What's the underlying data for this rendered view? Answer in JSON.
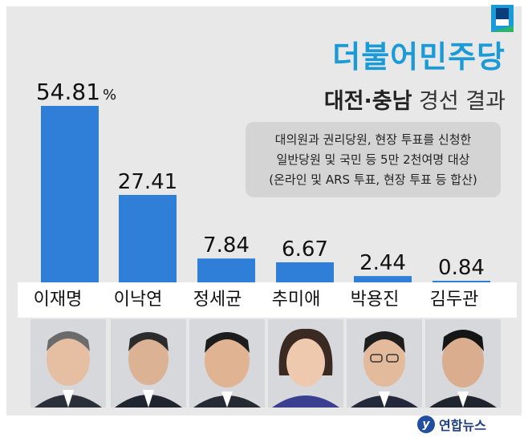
{
  "header": {
    "party": "더불어민주당",
    "region": "대전·충남",
    "result_label": "경선 결과"
  },
  "note": {
    "line1": "대의원과 권리당원, 현장 투표를 신청한",
    "line2": "일반당원 및 국민 등 5만 2천여명 대상",
    "line3": "(온라인 및 ARS 투표, 현장 투표 등 합산)"
  },
  "chart_data": {
    "type": "bar",
    "categories": [
      "이재명",
      "이낙연",
      "정세균",
      "추미애",
      "박용진",
      "김두관"
    ],
    "values": [
      54.81,
      27.41,
      7.84,
      6.67,
      2.44,
      0.84
    ],
    "value_labels": [
      "54.81",
      "27.41",
      "7.84",
      "6.67",
      "2.44",
      "0.84"
    ],
    "unit": "%",
    "title": "",
    "xlabel": "",
    "ylabel": "",
    "ylim": [
      0,
      54.81
    ],
    "bar_color": "#2f7fd8",
    "grid": false
  },
  "source": {
    "icon": "yonhap-logo-icon",
    "label": "연합뉴스"
  },
  "colors": {
    "brand": "#1a9ad6",
    "panel": "#e8e8e8",
    "bar": "#2f7fd8"
  }
}
